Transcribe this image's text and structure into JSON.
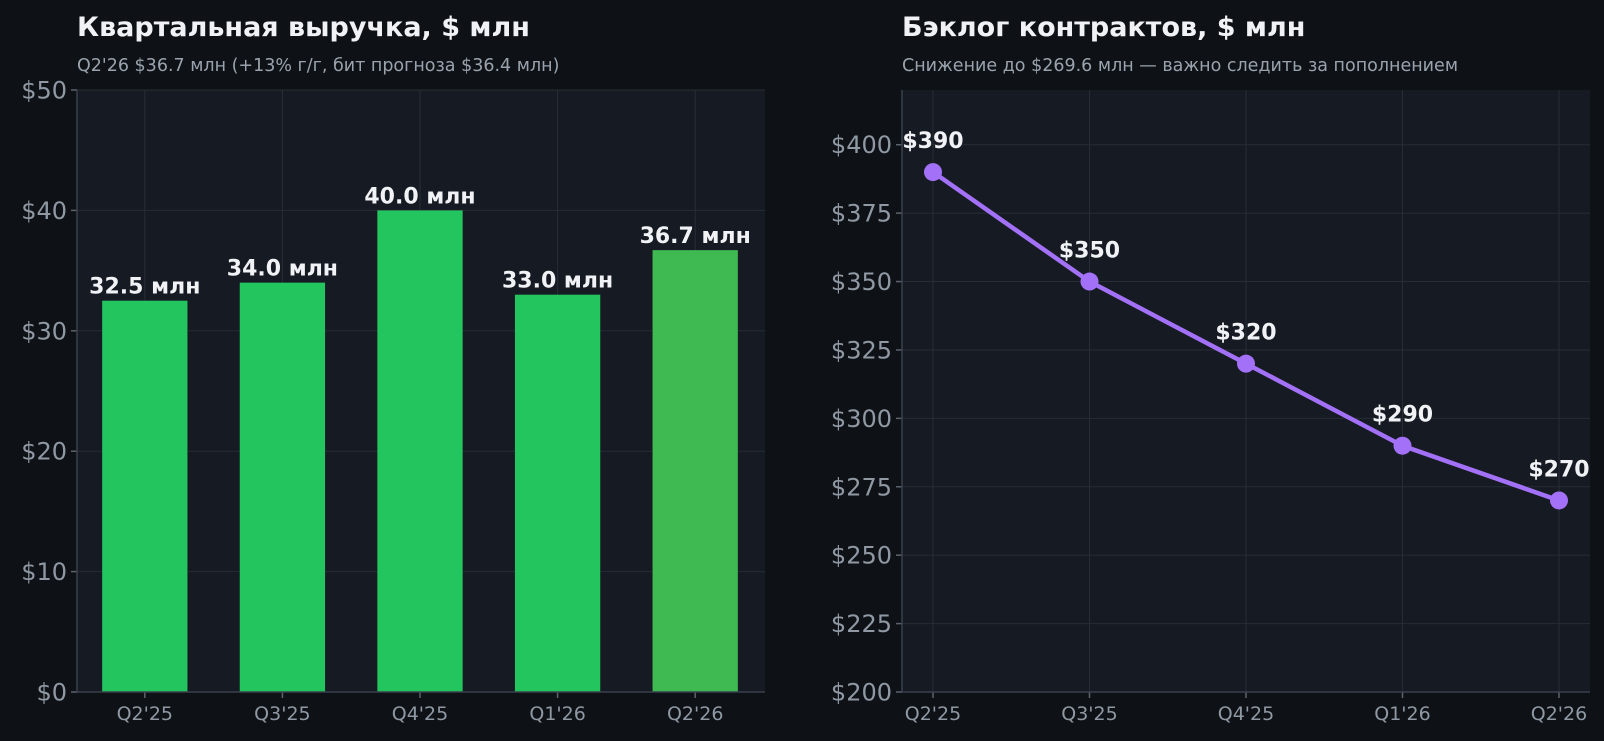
{
  "colors": {
    "background": "#0e1216",
    "plot_background": "#161a22",
    "grid": "#272c36",
    "bar": "#22c55e",
    "bar_highlight": "#3fba52",
    "line": "#a371f7",
    "text": "#f0f2f5",
    "muted_text": "#8f98a3"
  },
  "chart_data": [
    {
      "type": "bar",
      "title": "Квартальная выручка, $ млн",
      "subtitle": "Q2'26 $36.7 млн (+13% г/г, бит прогноза $36.4 млн)",
      "categories": [
        "Q2'25",
        "Q3'25",
        "Q4'25",
        "Q1'26",
        "Q2'26"
      ],
      "values": [
        32.5,
        34.0,
        40.0,
        33.0,
        36.7
      ],
      "data_labels": [
        "32.5 млн",
        "34.0 млн",
        "40.0 млн",
        "33.0 млн",
        "36.7 млн"
      ],
      "highlight_index": 4,
      "ylim": [
        0,
        50
      ],
      "yticks": [
        0,
        10,
        20,
        30,
        40,
        50
      ],
      "ytick_labels": [
        "$0",
        "$10",
        "$20",
        "$30",
        "$40",
        "$50"
      ],
      "grid": true,
      "legend": "none"
    },
    {
      "type": "line",
      "title": "Бэклог контрактов, $ млн",
      "subtitle": "Снижение до $269.6 млн — важно следить за пополнением",
      "categories": [
        "Q2'25",
        "Q3'25",
        "Q4'25",
        "Q1'26",
        "Q2'26"
      ],
      "values": [
        390,
        350,
        320,
        290,
        270
      ],
      "data_labels": [
        "$390",
        "$350",
        "$320",
        "$290",
        "$270"
      ],
      "ylim": [
        200,
        420
      ],
      "yticks": [
        200,
        225,
        250,
        275,
        300,
        325,
        350,
        375,
        400
      ],
      "ytick_labels": [
        "$200",
        "$225",
        "$250",
        "$275",
        "$300",
        "$325",
        "$350",
        "$375",
        "$400"
      ],
      "grid": true,
      "legend": "none"
    }
  ]
}
